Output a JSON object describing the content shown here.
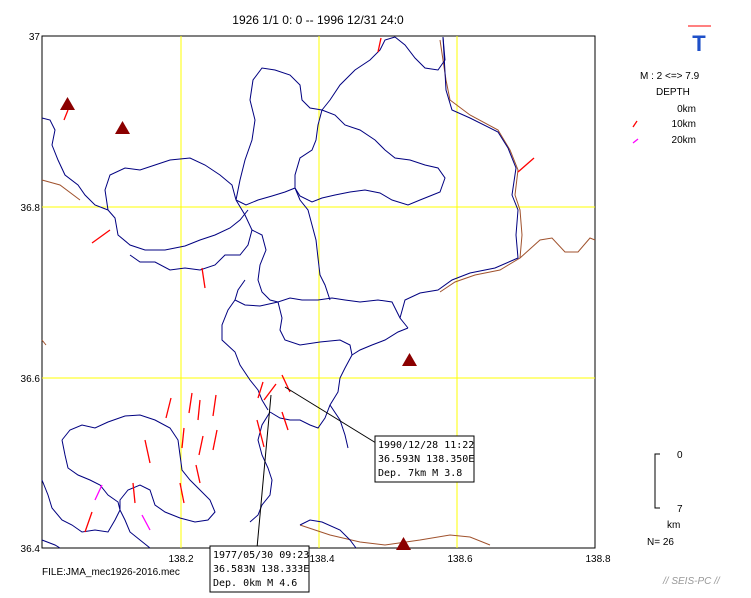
{
  "header": {
    "title": "1926 1/1 0: 0 -- 1996 12/31 24:0"
  },
  "axes": {
    "y_ticks": [
      "37",
      "36.8",
      "36.6",
      "36.4"
    ],
    "x_ticks": [
      "138.2",
      "138.4",
      "138.6",
      "138.8"
    ]
  },
  "legend": {
    "mode_symbol": "T",
    "magnitude": "M : 2 <=> 7.9",
    "depth_title": "DEPTH",
    "depth_items": [
      {
        "label": "0km",
        "color": "#ff0000"
      },
      {
        "label": "10km",
        "color": "#ff0000"
      },
      {
        "label": "20km",
        "color": "#ff00ff"
      }
    ]
  },
  "depth_scale": {
    "top": "0",
    "bottom": "7",
    "unit": "km"
  },
  "count": "N= 26",
  "file_label": "FILE:JMA_mec1926-2016.mec",
  "watermark": "// SEIS-PC //",
  "events": [
    {
      "line1": "1990/12/28 11:22",
      "line2": "36.593N   138.350E",
      "line3": "Dep. 7km    M 3.8"
    },
    {
      "line1": "1977/05/30 09:23",
      "line2": "36.583N   138.333E",
      "line3": "Dep. 0km    M 4.6"
    }
  ],
  "colors": {
    "grid": "#ffff00",
    "boundary": "#000080",
    "coast": "#a0522d",
    "volcano": "#8b0000",
    "mechanism": "#ff0000"
  }
}
